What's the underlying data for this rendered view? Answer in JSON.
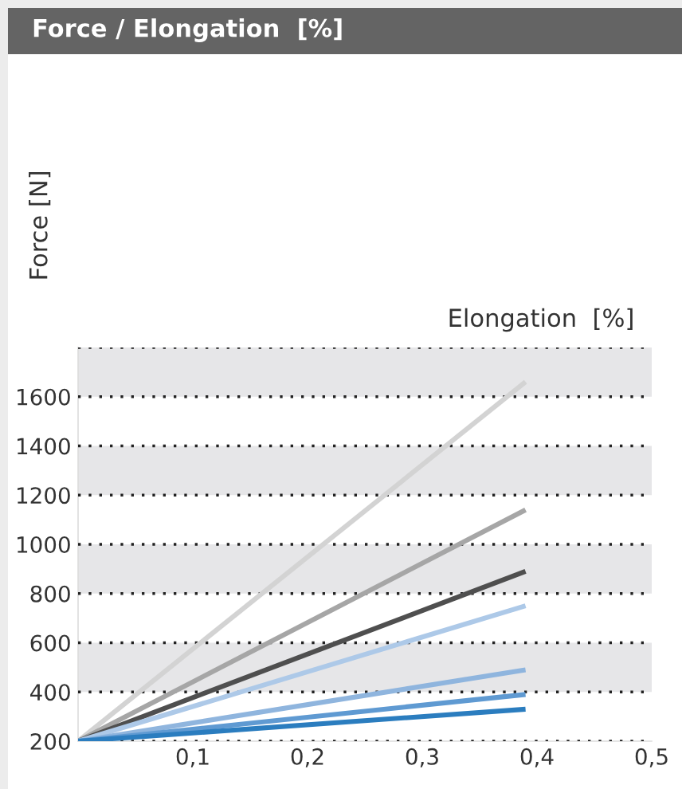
{
  "chart_data": {
    "type": "line",
    "title": "Force / Elongation  [%]",
    "xlabel": "Elongation  [%]",
    "ylabel": "Force [N]",
    "x": [
      0,
      0.39
    ],
    "series": [
      {
        "color": "#d3d3d3",
        "values": [
          200,
          1660
        ]
      },
      {
        "color": "#a6a6a6",
        "values": [
          200,
          1140
        ]
      },
      {
        "color": "#4f4f4f",
        "values": [
          200,
          890
        ]
      },
      {
        "color": "#adc9e8",
        "values": [
          200,
          750
        ]
      },
      {
        "color": "#8fb5de",
        "values": [
          200,
          490
        ]
      },
      {
        "color": "#5f9ad2",
        "values": [
          200,
          390
        ]
      },
      {
        "color": "#2b7dbf",
        "values": [
          200,
          330
        ]
      }
    ],
    "xlim": [
      0,
      0.5
    ],
    "ylim": [
      200,
      1800
    ],
    "xticks": [
      {
        "value": 0.1,
        "label": "0,1"
      },
      {
        "value": 0.2,
        "label": "0,2"
      },
      {
        "value": 0.3,
        "label": "0,3"
      },
      {
        "value": 0.4,
        "label": "0,4"
      },
      {
        "value": 0.5,
        "label": "0,5"
      }
    ],
    "yticks": [
      200,
      400,
      600,
      800,
      1000,
      1200,
      1400,
      1600,
      {
        "value": 1800,
        "label": null
      }
    ],
    "bands": [
      {
        "axis": "y",
        "from": 400,
        "to": 600,
        "color": "#e6e6e8"
      },
      {
        "axis": "y",
        "from": 800,
        "to": 1000,
        "color": "#e6e6e8"
      },
      {
        "axis": "y",
        "from": 1200,
        "to": 1400,
        "color": "#e6e6e8"
      },
      {
        "axis": "y",
        "from": 1600,
        "to": 1800,
        "color": "#e6e6e8"
      }
    ],
    "grid": "y",
    "legend": false,
    "marker": "none",
    "line_style": "solid"
  }
}
